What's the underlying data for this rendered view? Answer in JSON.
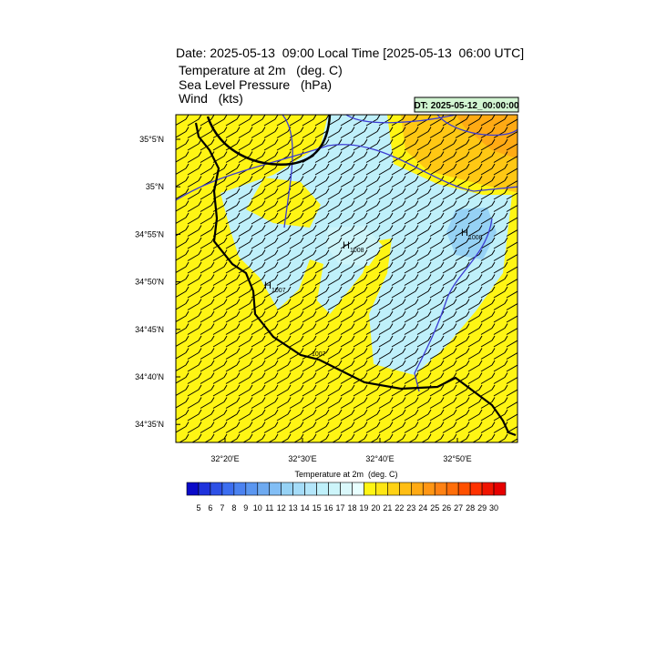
{
  "header": {
    "title": "Date: 2025-05-13  09:00 Local Time [2025-05-13  06:00 UTC]",
    "lines": [
      "Temperature at 2m   (deg. C)",
      "Sea Level Pressure   (hPa)",
      "Wind   (kts)"
    ],
    "dt_label": "DT: 2025-05-12_00:00:00"
  },
  "map": {
    "lat_labels": [
      "35°5'N",
      "35°N",
      "34°55'N",
      "34°50'N",
      "34°45'N",
      "34°40'N",
      "34°35'N"
    ],
    "lon_labels": [
      "32°20'E",
      "32°30'E",
      "32°40'E",
      "32°50'E"
    ],
    "pressure_centers": [
      {
        "symbol": "H",
        "value": "1008"
      },
      {
        "symbol": "H",
        "value": "1007"
      },
      {
        "symbol": "H",
        "value": "1008"
      }
    ],
    "contour_labels": [
      "1007"
    ]
  },
  "colorbar": {
    "title": "Temperature at 2m  (deg. C)",
    "labels": [
      5,
      6,
      7,
      8,
      9,
      10,
      11,
      12,
      13,
      14,
      15,
      16,
      17,
      18,
      19,
      20,
      21,
      22,
      23,
      24,
      25,
      26,
      27,
      28,
      29,
      30
    ],
    "colors": [
      "#0a0ac8",
      "#1e32dc",
      "#2d50e6",
      "#3c6ef0",
      "#4b82f0",
      "#5a96f0",
      "#6eaaf0",
      "#82bef5",
      "#96d2f5",
      "#a5dcf8",
      "#b4e6fa",
      "#bff0fa",
      "#cdf5fa",
      "#daf8fb",
      "#e8ffff",
      "#fff514",
      "#ffe614",
      "#ffd214",
      "#ffbe14",
      "#ffaa14",
      "#ff9614",
      "#ff8214",
      "#ff6e0a",
      "#ff5000",
      "#ff3200",
      "#f01400",
      "#e60000"
    ]
  }
}
